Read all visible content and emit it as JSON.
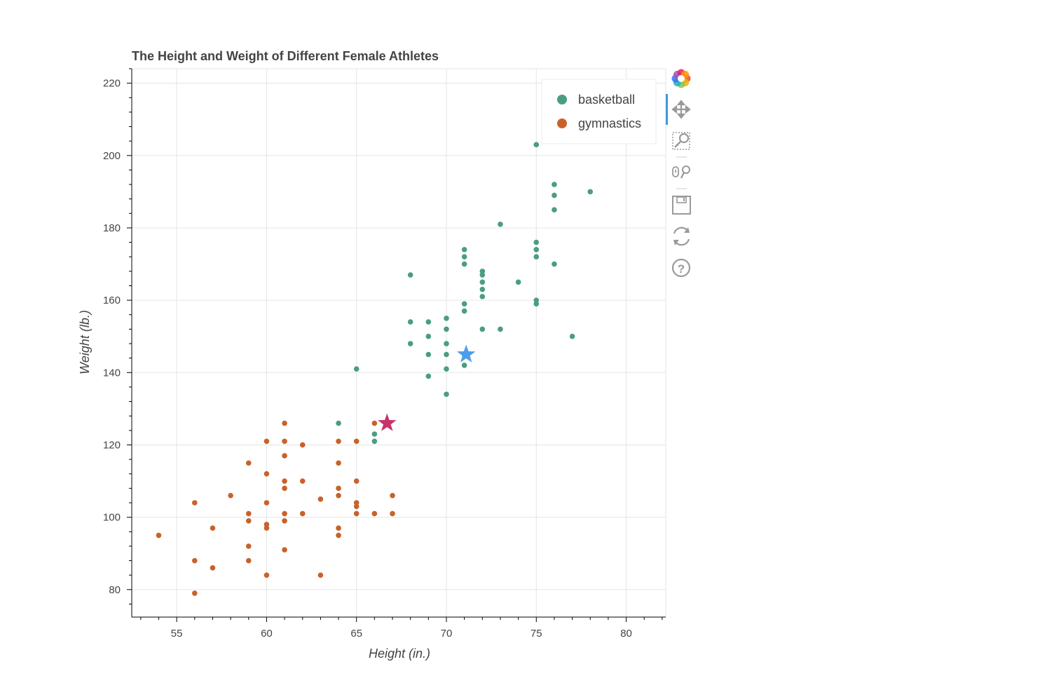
{
  "chart_data": {
    "type": "scatter",
    "title": "The Height and Weight of Different Female Athletes",
    "xlabel": "Height (in.)",
    "ylabel": "Weight (lb.)",
    "xlim": [
      52.5,
      82.2
    ],
    "ylim": [
      72.4,
      224
    ],
    "x_ticks": [
      55,
      60,
      65,
      70,
      75,
      80
    ],
    "y_ticks": [
      80,
      100,
      120,
      140,
      160,
      180,
      200,
      220
    ],
    "grid": true,
    "legend_position": "top-right",
    "series": [
      {
        "name": "basketball",
        "color": "#4a9e7e",
        "points": [
          [
            64,
            126
          ],
          [
            65,
            141
          ],
          [
            66,
            123
          ],
          [
            66,
            121
          ],
          [
            68,
            167
          ],
          [
            68,
            154
          ],
          [
            68,
            148
          ],
          [
            69,
            154
          ],
          [
            69,
            150
          ],
          [
            69,
            145
          ],
          [
            69,
            139
          ],
          [
            70,
            155
          ],
          [
            70,
            152
          ],
          [
            70,
            148
          ],
          [
            70,
            145
          ],
          [
            70,
            141
          ],
          [
            70,
            134
          ],
          [
            71,
            174
          ],
          [
            71,
            172
          ],
          [
            71,
            170
          ],
          [
            71,
            159
          ],
          [
            71,
            157
          ],
          [
            71,
            145
          ],
          [
            71,
            142
          ],
          [
            72,
            168
          ],
          [
            72,
            167
          ],
          [
            72,
            165
          ],
          [
            72,
            163
          ],
          [
            72,
            161
          ],
          [
            72,
            152
          ],
          [
            73,
            181
          ],
          [
            73,
            152
          ],
          [
            74,
            165
          ],
          [
            75,
            203
          ],
          [
            75,
            176
          ],
          [
            75,
            174
          ],
          [
            75,
            172
          ],
          [
            75,
            160
          ],
          [
            75,
            159
          ],
          [
            76,
            192
          ],
          [
            76,
            189
          ],
          [
            76,
            185
          ],
          [
            76,
            170
          ],
          [
            77,
            150
          ],
          [
            78,
            190
          ]
        ]
      },
      {
        "name": "gymnastics",
        "color": "#c8622a",
        "points": [
          [
            54,
            95
          ],
          [
            56,
            104
          ],
          [
            56,
            88
          ],
          [
            56,
            79
          ],
          [
            57,
            97
          ],
          [
            57,
            86
          ],
          [
            58,
            106
          ],
          [
            59,
            115
          ],
          [
            59,
            101
          ],
          [
            59,
            99
          ],
          [
            59,
            92
          ],
          [
            59,
            88
          ],
          [
            60,
            121
          ],
          [
            60,
            112
          ],
          [
            60,
            104
          ],
          [
            60,
            98
          ],
          [
            60,
            97
          ],
          [
            60,
            84
          ],
          [
            61,
            126
          ],
          [
            61,
            121
          ],
          [
            61,
            117
          ],
          [
            61,
            110
          ],
          [
            61,
            108
          ],
          [
            61,
            101
          ],
          [
            61,
            99
          ],
          [
            61,
            91
          ],
          [
            62,
            120
          ],
          [
            62,
            110
          ],
          [
            62,
            101
          ],
          [
            63,
            105
          ],
          [
            63,
            84
          ],
          [
            64,
            121
          ],
          [
            64,
            115
          ],
          [
            64,
            108
          ],
          [
            64,
            106
          ],
          [
            64,
            97
          ],
          [
            64,
            95
          ],
          [
            65,
            121
          ],
          [
            65,
            110
          ],
          [
            65,
            104
          ],
          [
            65,
            103
          ],
          [
            65,
            101
          ],
          [
            66,
            126
          ],
          [
            66,
            101
          ],
          [
            67,
            106
          ],
          [
            67,
            101
          ]
        ]
      }
    ],
    "highlights": [
      {
        "color": "#4d9ee8",
        "x": 71.1,
        "y": 145
      },
      {
        "color": "#c8336a",
        "x": 66.7,
        "y": 126
      }
    ]
  },
  "toolbar": {
    "items": [
      {
        "name": "bokeh-logo-icon"
      },
      {
        "name": "pan-tool-icon"
      },
      {
        "name": "box-zoom-tool-icon"
      },
      {
        "name": "wheel-zoom-tool-icon"
      },
      {
        "name": "save-tool-icon"
      },
      {
        "name": "reset-tool-icon"
      },
      {
        "name": "help-tool-icon"
      }
    ],
    "active_accent": "#3a9bdc"
  }
}
